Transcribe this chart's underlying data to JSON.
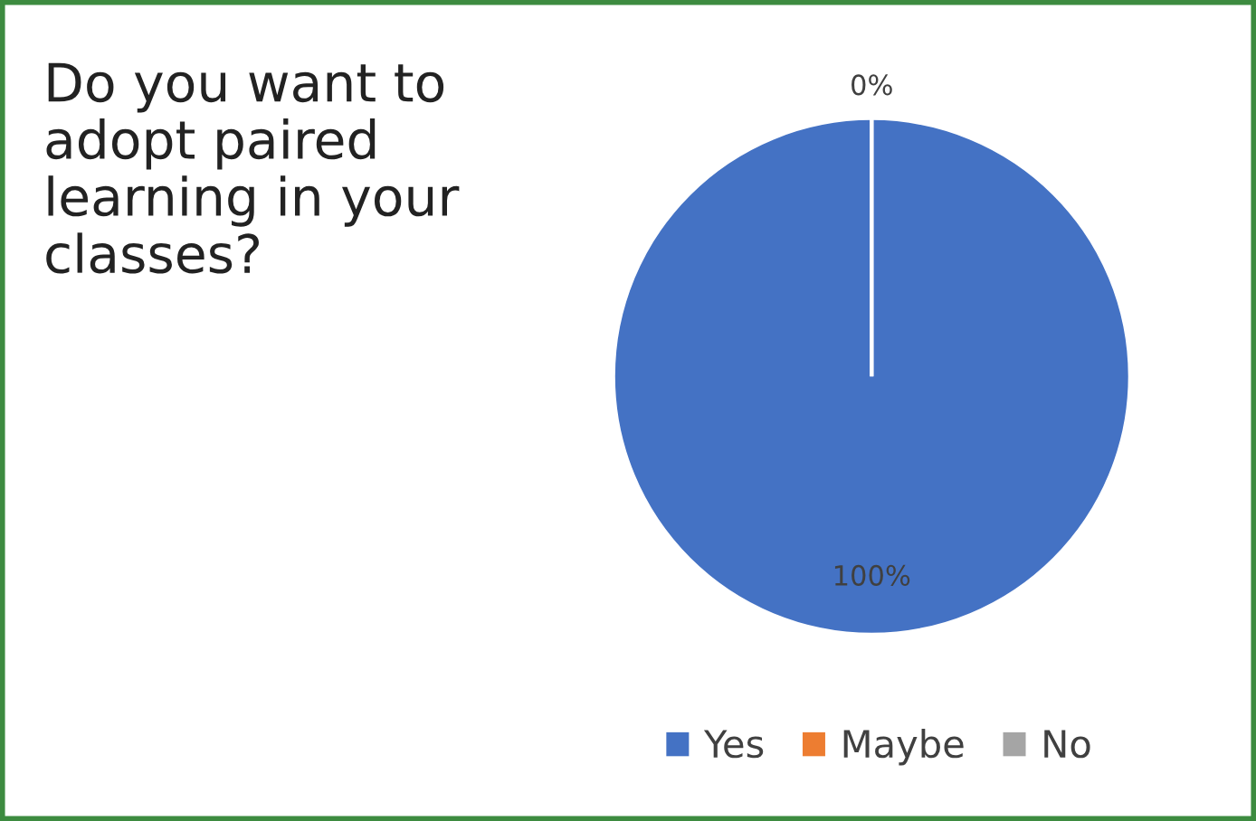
{
  "chart_data": {
    "type": "pie",
    "title": "Do you want to adopt paired learning in your classes?",
    "categories": [
      "Yes",
      "Maybe",
      "No"
    ],
    "values": [
      100,
      0,
      0
    ],
    "colors": [
      "#4472c4",
      "#ed7d31",
      "#a5a5a5"
    ],
    "value_labels": [
      "100%",
      "0%",
      null
    ],
    "legend": "bottom"
  }
}
